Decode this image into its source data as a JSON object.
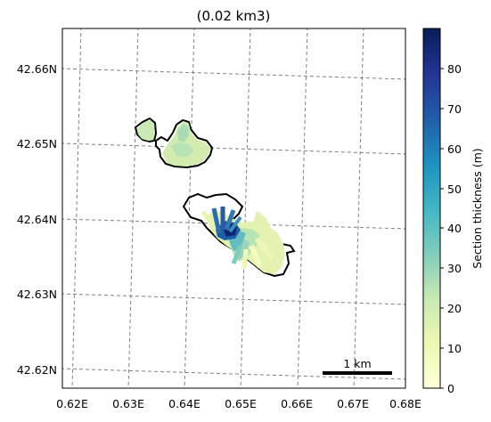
{
  "map": {
    "title": "(0.02 km3)",
    "x_ticks": [
      "0.62E",
      "0.63E",
      "0.64E",
      "0.65E",
      "0.66E",
      "0.67E",
      "0.68E"
    ],
    "y_ticks": [
      "42.66N",
      "42.65N",
      "42.64N",
      "42.63N",
      "42.62N"
    ],
    "scale_bar_label": "1 km",
    "grid": "dashed",
    "grid_color": "#808080"
  },
  "colorbar": {
    "label": "Section thickness (m)",
    "ticks": [
      "0",
      "10",
      "20",
      "30",
      "40",
      "50",
      "60",
      "70",
      "80"
    ],
    "range": [
      0,
      90
    ],
    "colormap": "YlGnBu",
    "colors": [
      "#ffffd9",
      "#edf8b1",
      "#c7e9b4",
      "#7fcdbb",
      "#41b6c4",
      "#1d91c0",
      "#225ea8",
      "#253494",
      "#081d58"
    ]
  }
}
